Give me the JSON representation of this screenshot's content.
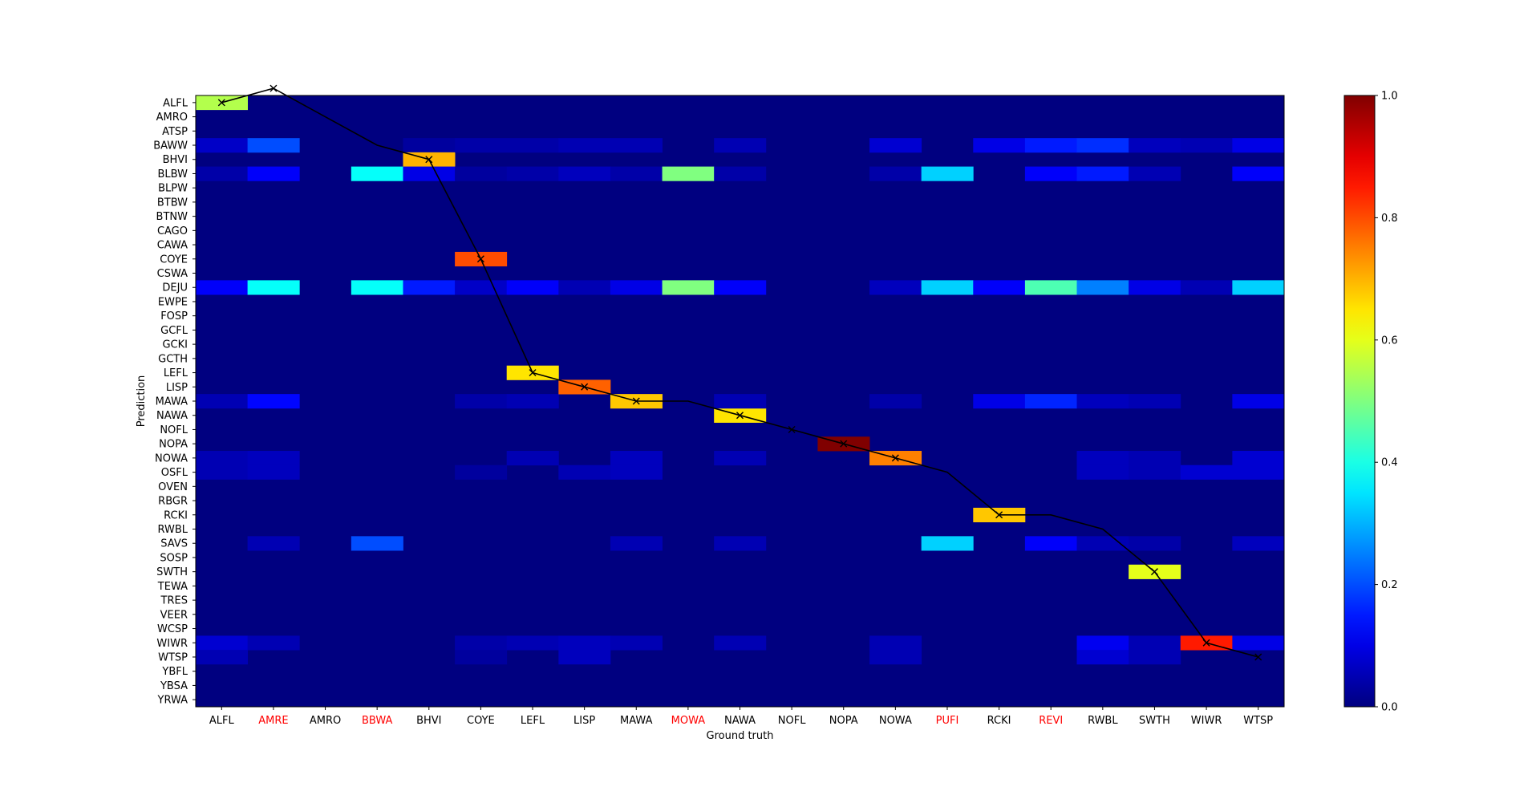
{
  "chart_data": {
    "type": "heatmap",
    "xlabel": "Ground truth",
    "ylabel": "Prediction",
    "x_categories": [
      "ALFL",
      "AMRE",
      "AMRO",
      "BBWA",
      "BHVI",
      "COYE",
      "LEFL",
      "LISP",
      "MAWA",
      "MOWA",
      "NAWA",
      "NOFL",
      "NOPA",
      "NOWA",
      "PUFI",
      "RCKI",
      "REVI",
      "RWBL",
      "SWTH",
      "WIWR",
      "WTSP"
    ],
    "x_categories_highlighted": [
      "AMRE",
      "BBWA",
      "MOWA",
      "PUFI",
      "REVI"
    ],
    "highlight_color": "#ff0000",
    "y_categories": [
      "ALFL",
      "AMRO",
      "ATSP",
      "BAWW",
      "BHVI",
      "BLBW",
      "BLPW",
      "BTBW",
      "BTNW",
      "CAGO",
      "CAWA",
      "COYE",
      "CSWA",
      "DEJU",
      "EWPE",
      "FOSP",
      "GCFL",
      "GCKI",
      "GCTH",
      "LEFL",
      "LISP",
      "MAWA",
      "NAWA",
      "NOFL",
      "NOPA",
      "NOWA",
      "OSFL",
      "OVEN",
      "RBGR",
      "RCKI",
      "RWBL",
      "SAVS",
      "SOSP",
      "SWTH",
      "TEWA",
      "TRES",
      "VEER",
      "WCSP",
      "WIWR",
      "WTSP",
      "YBFL",
      "YBSA",
      "YRWA"
    ],
    "colormap": "jet",
    "vmin": 0.0,
    "vmax": 1.0,
    "colorbar_ticks": [
      "0.0",
      "0.2",
      "0.4",
      "0.6",
      "0.8",
      "1.0"
    ],
    "cells": [
      [
        "ALFL",
        "ALFL",
        0.55
      ],
      [
        "ALFL",
        "BAWW",
        0.07
      ],
      [
        "ALFL",
        "BLBW",
        0.04
      ],
      [
        "ALFL",
        "DEJU",
        0.12
      ],
      [
        "ALFL",
        "MAWA",
        0.05
      ],
      [
        "ALFL",
        "NOWA",
        0.05
      ],
      [
        "ALFL",
        "OSFL",
        0.05
      ],
      [
        "ALFL",
        "WIWR",
        0.08
      ],
      [
        "ALFL",
        "WTSP",
        0.05
      ],
      [
        "AMRE",
        "BAWW",
        0.2
      ],
      [
        "AMRE",
        "BLBW",
        0.12
      ],
      [
        "AMRE",
        "DEJU",
        0.38
      ],
      [
        "AMRE",
        "MAWA",
        0.13
      ],
      [
        "AMRE",
        "NOWA",
        0.06
      ],
      [
        "AMRE",
        "OSFL",
        0.06
      ],
      [
        "AMRE",
        "SAVS",
        0.05
      ],
      [
        "AMRE",
        "WIWR",
        0.05
      ],
      [
        "BBWA",
        "BLBW",
        0.38
      ],
      [
        "BBWA",
        "DEJU",
        0.38
      ],
      [
        "BBWA",
        "SAVS",
        0.2
      ],
      [
        "BHVI",
        "BAWW",
        0.03
      ],
      [
        "BHVI",
        "BHVI",
        0.7
      ],
      [
        "BHVI",
        "BLBW",
        0.1
      ],
      [
        "BHVI",
        "DEJU",
        0.15
      ],
      [
        "COYE",
        "COYE",
        0.8
      ],
      [
        "COYE",
        "BAWW",
        0.04
      ],
      [
        "COYE",
        "BLBW",
        0.03
      ],
      [
        "COYE",
        "DEJU",
        0.07
      ],
      [
        "COYE",
        "MAWA",
        0.04
      ],
      [
        "COYE",
        "WIWR",
        0.04
      ],
      [
        "COYE",
        "WTSP",
        0.03
      ],
      [
        "COYE",
        "OSFL",
        0.03
      ],
      [
        "LEFL",
        "LEFL",
        0.65
      ],
      [
        "LEFL",
        "BAWW",
        0.04
      ],
      [
        "LEFL",
        "BLBW",
        0.04
      ],
      [
        "LEFL",
        "DEJU",
        0.12
      ],
      [
        "LEFL",
        "MAWA",
        0.05
      ],
      [
        "LEFL",
        "NOWA",
        0.05
      ],
      [
        "LEFL",
        "WIWR",
        0.05
      ],
      [
        "LISP",
        "LISP",
        0.78
      ],
      [
        "LISP",
        "BAWW",
        0.05
      ],
      [
        "LISP",
        "BLBW",
        0.06
      ],
      [
        "LISP",
        "DEJU",
        0.05
      ],
      [
        "LISP",
        "OSFL",
        0.05
      ],
      [
        "LISP",
        "WIWR",
        0.06
      ],
      [
        "LISP",
        "WTSP",
        0.06
      ],
      [
        "MAWA",
        "MAWA",
        0.68
      ],
      [
        "MAWA",
        "BAWW",
        0.05
      ],
      [
        "MAWA",
        "BLBW",
        0.04
      ],
      [
        "MAWA",
        "DEJU",
        0.1
      ],
      [
        "MAWA",
        "NOWA",
        0.06
      ],
      [
        "MAWA",
        "OSFL",
        0.06
      ],
      [
        "MAWA",
        "SAVS",
        0.05
      ],
      [
        "MAWA",
        "WIWR",
        0.05
      ],
      [
        "MOWA",
        "BLBW",
        0.5
      ],
      [
        "MOWA",
        "DEJU",
        0.5
      ],
      [
        "NAWA",
        "NAWA",
        0.65
      ],
      [
        "NAWA",
        "BAWW",
        0.05
      ],
      [
        "NAWA",
        "BLBW",
        0.04
      ],
      [
        "NAWA",
        "DEJU",
        0.12
      ],
      [
        "NAWA",
        "MAWA",
        0.05
      ],
      [
        "NAWA",
        "NOWA",
        0.05
      ],
      [
        "NAWA",
        "SAVS",
        0.05
      ],
      [
        "NAWA",
        "WIWR",
        0.05
      ],
      [
        "NOPA",
        "NOPA",
        1.0
      ],
      [
        "NOWA",
        "NOWA",
        0.75
      ],
      [
        "NOWA",
        "BAWW",
        0.08
      ],
      [
        "NOWA",
        "BLBW",
        0.04
      ],
      [
        "NOWA",
        "DEJU",
        0.06
      ],
      [
        "NOWA",
        "MAWA",
        0.04
      ],
      [
        "NOWA",
        "WIWR",
        0.05
      ],
      [
        "NOWA",
        "WTSP",
        0.05
      ],
      [
        "PUFI",
        "BLBW",
        0.33
      ],
      [
        "PUFI",
        "DEJU",
        0.33
      ],
      [
        "PUFI",
        "SAVS",
        0.33
      ],
      [
        "RCKI",
        "RCKI",
        0.68
      ],
      [
        "RCKI",
        "BAWW",
        0.1
      ],
      [
        "RCKI",
        "DEJU",
        0.12
      ],
      [
        "RCKI",
        "MAWA",
        0.1
      ],
      [
        "REVI",
        "BAWW",
        0.15
      ],
      [
        "REVI",
        "BLBW",
        0.12
      ],
      [
        "REVI",
        "DEJU",
        0.45
      ],
      [
        "REVI",
        "MAWA",
        0.16
      ],
      [
        "REVI",
        "SAVS",
        0.12
      ],
      [
        "RWBL",
        "RWBL",
        0.0
      ],
      [
        "RWBL",
        "BAWW",
        0.17
      ],
      [
        "RWBL",
        "BLBW",
        0.15
      ],
      [
        "RWBL",
        "DEJU",
        0.25
      ],
      [
        "RWBL",
        "MAWA",
        0.06
      ],
      [
        "RWBL",
        "NOWA",
        0.06
      ],
      [
        "RWBL",
        "OSFL",
        0.06
      ],
      [
        "RWBL",
        "SAVS",
        0.05
      ],
      [
        "RWBL",
        "WIWR",
        0.11
      ],
      [
        "RWBL",
        "WTSP",
        0.08
      ],
      [
        "SWTH",
        "SWTH",
        0.6
      ],
      [
        "SWTH",
        "BAWW",
        0.06
      ],
      [
        "SWTH",
        "BLBW",
        0.05
      ],
      [
        "SWTH",
        "DEJU",
        0.1
      ],
      [
        "SWTH",
        "MAWA",
        0.05
      ],
      [
        "SWTH",
        "NOWA",
        0.05
      ],
      [
        "SWTH",
        "OSFL",
        0.05
      ],
      [
        "SWTH",
        "SAVS",
        0.04
      ],
      [
        "SWTH",
        "WIWR",
        0.05
      ],
      [
        "SWTH",
        "WTSP",
        0.05
      ],
      [
        "WIWR",
        "WIWR",
        0.85
      ],
      [
        "WIWR",
        "BAWW",
        0.05
      ],
      [
        "WIWR",
        "DEJU",
        0.05
      ],
      [
        "WIWR",
        "OSFL",
        0.08
      ],
      [
        "WTSP",
        "BAWW",
        0.1
      ],
      [
        "WTSP",
        "BLBW",
        0.12
      ],
      [
        "WTSP",
        "DEJU",
        0.33
      ],
      [
        "WTSP",
        "MAWA",
        0.1
      ],
      [
        "WTSP",
        "NOWA",
        0.08
      ],
      [
        "WTSP",
        "OSFL",
        0.08
      ],
      [
        "WTSP",
        "SAVS",
        0.06
      ],
      [
        "WTSP",
        "WIWR",
        0.1
      ]
    ],
    "line_series": {
      "marker": "x",
      "color": "#000000",
      "points": [
        [
          "ALFL",
          "ALFL"
        ],
        [
          "AMRE",
          "AMRE"
        ],
        [
          "AMRO",
          "AMRO"
        ],
        [
          "BBWA",
          "BAWW"
        ],
        [
          "BHVI",
          "BHVI"
        ],
        [
          "COYE",
          "COYE"
        ],
        [
          "LEFL",
          "LEFL"
        ],
        [
          "LISP",
          "LISP"
        ],
        [
          "MAWA",
          "MAWA"
        ],
        [
          "MOWA",
          "MAWA"
        ],
        [
          "NAWA",
          "NAWA"
        ],
        [
          "NOFL",
          "NOFL"
        ],
        [
          "NOPA",
          "NOPA"
        ],
        [
          "NOWA",
          "NOWA"
        ],
        [
          "PUFI",
          "OSFL"
        ],
        [
          "RCKI",
          "RCKI"
        ],
        [
          "REVI",
          "RCKI"
        ],
        [
          "RWBL",
          "RWBL"
        ],
        [
          "SWTH",
          "SWTH"
        ],
        [
          "WIWR",
          "WIWR"
        ],
        [
          "WTSP",
          "WTSP"
        ]
      ],
      "marker_hidden_on": [
        "AMRO",
        "BBWA",
        "MOWA",
        "PUFI",
        "REVI",
        "RWBL"
      ]
    }
  }
}
